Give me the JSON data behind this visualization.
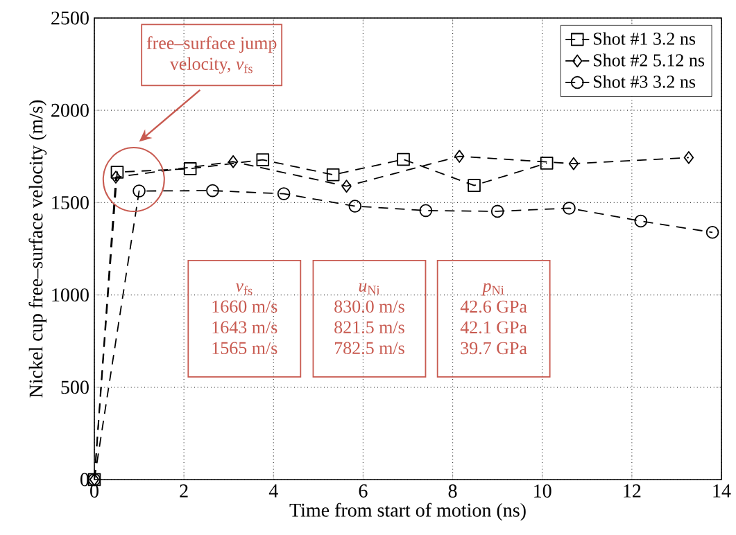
{
  "chart_data": {
    "type": "line",
    "xlabel": "Time from start of motion (ns)",
    "ylabel": "Nickel cup free–surface velocity (m/s)",
    "xlim": [
      0,
      14
    ],
    "ylim": [
      0,
      2500
    ],
    "xticks": [
      0,
      2,
      4,
      6,
      8,
      10,
      12,
      14
    ],
    "yticks": [
      0,
      500,
      1000,
      1500,
      2000,
      2500
    ],
    "grid": true,
    "legend": "top right",
    "line_style": "dashed",
    "series": [
      {
        "name": "Shot #1 3.2 ns",
        "color": "#000000",
        "marker": "square",
        "x": [
          0,
          0.51,
          2.14,
          3.76,
          5.33,
          6.9,
          8.48,
          10.1
        ],
        "values": [
          0,
          1665,
          1684,
          1732,
          1651,
          1734,
          1593,
          1714
        ]
      },
      {
        "name": "Shot #2 5.12 ns",
        "color": "#000000",
        "marker": "diamond",
        "x": [
          0,
          0.48,
          3.1,
          5.63,
          8.15,
          10.7,
          13.27
        ],
        "values": [
          0,
          1638,
          1722,
          1589,
          1751,
          1711,
          1744
        ]
      },
      {
        "name": "Shot #3 3.2 ns",
        "color": "#000000",
        "marker": "circle",
        "x": [
          0,
          1.0,
          2.64,
          4.23,
          5.82,
          7.4,
          9.0,
          10.6,
          12.2,
          13.8
        ],
        "values": [
          0,
          1563,
          1565,
          1548,
          1481,
          1457,
          1453,
          1470,
          1400,
          1339
        ]
      }
    ],
    "annotations": [
      "free–surface jump",
      "velocity, *v*$_{fs}$",
      "*v*$_{fs}$",
      "1660 m/s",
      "1643 m/s",
      "1565 m/s",
      "*u*$_{Ni}$",
      "830.0 m/s",
      "821.5 m/s",
      "782.5 m/s",
      "*p*$_{Ni}$",
      "42.6 GPa",
      "42.1 GPa",
      "39.7 GPa"
    ]
  }
}
